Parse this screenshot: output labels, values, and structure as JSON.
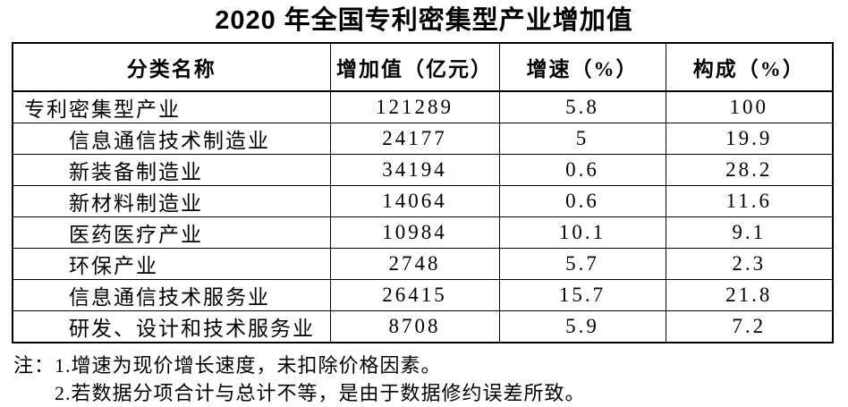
{
  "chart_data": {
    "type": "table",
    "title": "2020 年全国专利密集型产业增加值",
    "columns": [
      "分类名称",
      "增加值（亿元）",
      "增速（%）",
      "构成（%）"
    ],
    "rows": [
      {
        "name": "专利密集型产业",
        "value": "121289",
        "growth": "5.8",
        "share": "100",
        "indent": false
      },
      {
        "name": "信息通信技术制造业",
        "value": "24177",
        "growth": "5",
        "share": "19.9",
        "indent": true
      },
      {
        "name": "新装备制造业",
        "value": "34194",
        "growth": "0.6",
        "share": "28.2",
        "indent": true
      },
      {
        "name": "新材料制造业",
        "value": "14064",
        "growth": "0.6",
        "share": "11.6",
        "indent": true
      },
      {
        "name": "医药医疗产业",
        "value": "10984",
        "growth": "10.1",
        "share": "9.1",
        "indent": true
      },
      {
        "name": "环保产业",
        "value": "2748",
        "growth": "5.7",
        "share": "2.3",
        "indent": true
      },
      {
        "name": "信息通信技术服务业",
        "value": "26415",
        "growth": "15.7",
        "share": "21.8",
        "indent": true
      },
      {
        "name": "研发、设计和技术服务业",
        "value": "8708",
        "growth": "5.9",
        "share": "7.2",
        "indent": true
      }
    ],
    "notes_label": "注：",
    "notes": [
      "1.增速为现价增长速度，未扣除价格因素。",
      "2.若数据分项合计与总计不等，是由于数据修约误差所致。"
    ]
  },
  "colors": {
    "text": "#000000",
    "background": "#ffffff",
    "border": "#000000"
  }
}
